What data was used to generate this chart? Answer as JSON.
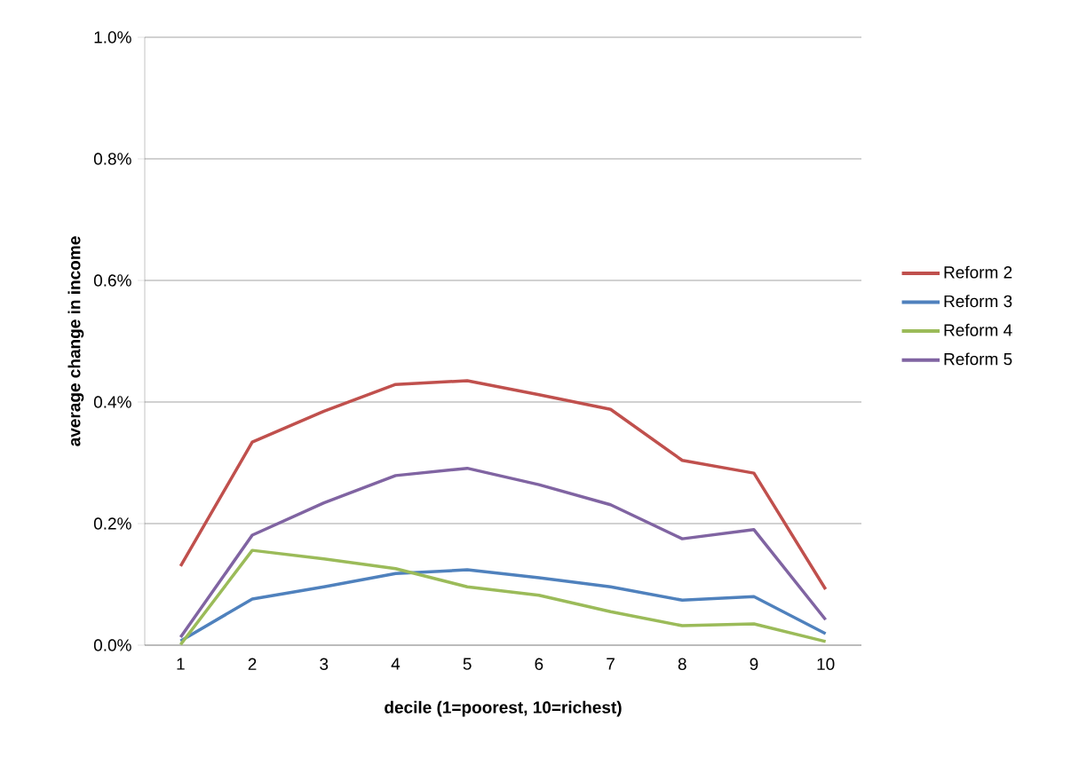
{
  "chart_data": {
    "type": "line",
    "xlabel": "decile (1=poorest, 10=richest)",
    "ylabel": "average change in income",
    "categories": [
      "1",
      "2",
      "3",
      "4",
      "5",
      "6",
      "7",
      "8",
      "9",
      "10"
    ],
    "series": [
      {
        "name": "Reform 2",
        "color": "#c0504d",
        "values": [
          0.13,
          0.334,
          0.385,
          0.429,
          0.435,
          0.412,
          0.388,
          0.304,
          0.283,
          0.092
        ]
      },
      {
        "name": "Reform 3",
        "color": "#4f81bd",
        "values": [
          0.007,
          0.076,
          0.096,
          0.118,
          0.124,
          0.111,
          0.096,
          0.074,
          0.08,
          0.019
        ]
      },
      {
        "name": "Reform 4",
        "color": "#9bbb59",
        "values": [
          0.001,
          0.156,
          0.142,
          0.126,
          0.096,
          0.082,
          0.055,
          0.032,
          0.035,
          0.006
        ]
      },
      {
        "name": "Reform 5",
        "color": "#8064a2",
        "values": [
          0.013,
          0.181,
          0.234,
          0.279,
          0.291,
          0.264,
          0.231,
          0.175,
          0.19,
          0.042
        ]
      }
    ],
    "ylim": [
      0,
      1
    ],
    "yticks": [
      {
        "value": 0,
        "label": "0.0%"
      },
      {
        "value": 0.2,
        "label": "0.2%"
      },
      {
        "value": 0.4,
        "label": "0.4%"
      },
      {
        "value": 0.6,
        "label": "0.6%"
      },
      {
        "value": 0.8,
        "label": "0.8%"
      },
      {
        "value": 1,
        "label": "1.0%"
      }
    ],
    "grid": "y",
    "legend": "right",
    "marker": "none",
    "line_style": "solid"
  }
}
